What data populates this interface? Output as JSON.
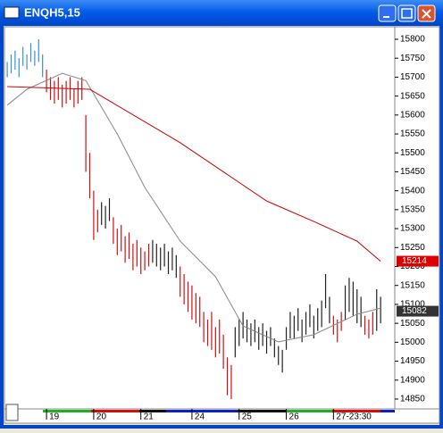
{
  "window_title": "ENQH5,15",
  "chart_data": {
    "type": "ohlc",
    "xlim": [
      -0.7,
      98.6
    ],
    "ylim": [
      14824,
      15833
    ],
    "yticks": [
      14850,
      14900,
      14950,
      15000,
      15050,
      15100,
      15150,
      15200,
      15250,
      15300,
      15350,
      15400,
      15450,
      15500,
      15550,
      15600,
      15650,
      15700,
      15750,
      15800
    ],
    "xticks": [
      {
        "value": 10,
        "label": "19"
      },
      {
        "value": 22,
        "label": "20"
      },
      {
        "value": 34,
        "label": "21"
      },
      {
        "value": 47,
        "label": "24"
      },
      {
        "value": 59,
        "label": "25"
      },
      {
        "value": 71,
        "label": "26"
      },
      {
        "value": 83,
        "label": "27-23:30"
      }
    ],
    "high": [
      15740,
      15760,
      15770,
      15750,
      15780,
      15760,
      15790,
      15770,
      15800,
      15760,
      15720,
      15700,
      15690,
      15700,
      15680,
      15690,
      15700,
      15670,
      15690,
      15700,
      15600,
      15500,
      15400,
      15350,
      15370,
      15360,
      15380,
      15330,
      15300,
      15310,
      15280,
      15290,
      15260,
      15270,
      15250,
      15240,
      15260,
      15270,
      15260,
      15250,
      15260,
      15240,
      15250,
      15230,
      15200,
      15180,
      15160,
      15150,
      15130,
      15120,
      15080,
      15060,
      15080,
      15040,
      15060,
      15020,
      14960,
      14940,
      15040,
      15060,
      15080,
      15060,
      15050,
      15060,
      15040,
      15050,
      15030,
      15040,
      15010,
      14990,
      14980,
      15040,
      15080,
      15070,
      15090,
      15060,
      15080,
      15100,
      15070,
      15090,
      15110,
      15180,
      15120,
      15070,
      15060,
      15080,
      15150,
      15170,
      15160,
      15140,
      15120,
      15070,
      15060,
      15080,
      15140,
      15120
    ],
    "low": [
      15700,
      15710,
      15720,
      15700,
      15730,
      15720,
      15740,
      15730,
      15740,
      15700,
      15660,
      15640,
      15630,
      15640,
      15620,
      15630,
      15640,
      15620,
      15630,
      15640,
      15450,
      15380,
      15270,
      15290,
      15310,
      15300,
      15320,
      15260,
      15230,
      15240,
      15210,
      15220,
      15190,
      15200,
      15180,
      15190,
      15200,
      15210,
      15200,
      15190,
      15200,
      15180,
      15190,
      15170,
      15120,
      15100,
      15080,
      15060,
      15050,
      15040,
      15000,
      14990,
      14980,
      14960,
      14970,
      14930,
      14860,
      14850,
      14960,
      14990,
      15010,
      15000,
      14990,
      15000,
      14980,
      14990,
      14970,
      14990,
      14960,
      14940,
      14920,
      14980,
      15010,
      15010,
      15030,
      15000,
      15020,
      15040,
      15010,
      15030,
      15040,
      15090,
      15050,
      15020,
      15000,
      15030,
      15060,
      15080,
      15070,
      15050,
      15040,
      15020,
      15010,
      15020,
      15030,
      15050
    ],
    "color_runs": [
      [
        10,
        "#3a8fd9"
      ],
      [
        14,
        "#d01010"
      ],
      [
        3,
        "#222222"
      ],
      [
        10,
        "#d01010"
      ],
      [
        7,
        "#222222"
      ],
      [
        14,
        "#d01010"
      ],
      [
        25,
        "#222222"
      ],
      [
        3,
        "#d01010"
      ],
      [
        5,
        "#222222"
      ],
      [
        3,
        "#d01010"
      ],
      [
        2,
        "#222222"
      ]
    ],
    "lines": [
      {
        "color": "#888888",
        "x": [
          0,
          5,
          14,
          20,
          28,
          35,
          44,
          53,
          60,
          69,
          78,
          89,
          95
        ],
        "values": [
          15626,
          15668,
          15710,
          15691,
          15550,
          15409,
          15267,
          15173,
          15043,
          15001,
          15020,
          15074,
          15090
        ]
      },
      {
        "color": "#cc0000",
        "x": [
          0,
          21,
          44,
          66,
          78,
          89,
          95
        ],
        "values": [
          15675,
          15668,
          15527,
          15373,
          15319,
          15267,
          15214
        ]
      }
    ],
    "markers": [
      {
        "value": 15214,
        "color": "#dd0000"
      },
      {
        "value": 15082,
        "color": "#333333"
      }
    ]
  }
}
